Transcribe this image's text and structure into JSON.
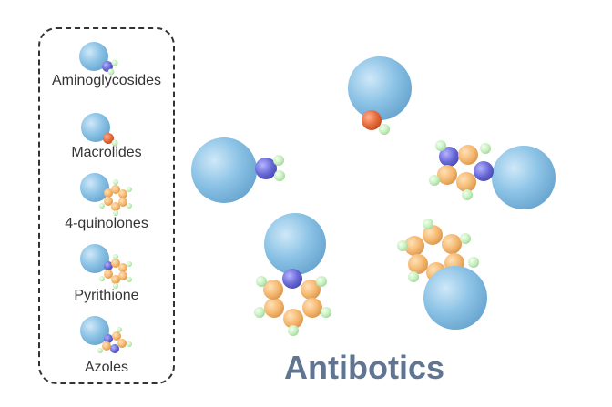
{
  "title": "Antibotics",
  "legend": {
    "items": [
      {
        "label": "Aminoglycosides"
      },
      {
        "label": "Macrolides"
      },
      {
        "label": "4-quinolones"
      },
      {
        "label": "Pyrithione"
      },
      {
        "label": "Azoles"
      }
    ]
  },
  "colors": {
    "sphere": "#8cc3e6",
    "nitrogen": "#6a6ad8",
    "oxygen": "#e86a3a",
    "carbon": "#f5b870",
    "hydrogen": "#c8f0c0",
    "title": "#5f7591"
  }
}
